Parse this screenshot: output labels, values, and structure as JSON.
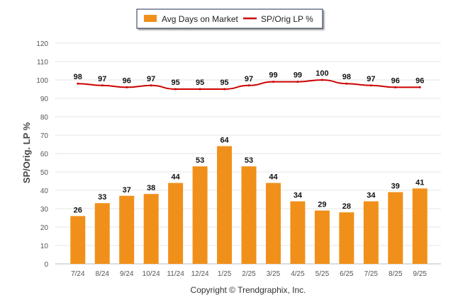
{
  "chart_data": {
    "type": "bar",
    "title": "",
    "xlabel": "",
    "ylabel": "SP/Orig. LP %",
    "ylim": [
      0,
      120
    ],
    "yticks": [
      "0",
      "10",
      "20",
      "30",
      "40",
      "50",
      "60",
      "70",
      "80",
      "90",
      "100",
      "110",
      "120"
    ],
    "grid": true,
    "legend_position": "top-center",
    "categories": [
      "7/24",
      "8/24",
      "9/24",
      "10/24",
      "11/24",
      "12/24",
      "1/25",
      "2/25",
      "3/25",
      "4/25",
      "5/25",
      "6/25",
      "7/25",
      "8/25",
      "9/25"
    ],
    "series": [
      {
        "name": "Avg Days on Market",
        "type": "bar",
        "color": "#F0901A",
        "values": [
          26,
          33,
          37,
          38,
          44,
          53,
          64,
          53,
          44,
          34,
          29,
          28,
          34,
          39,
          41
        ]
      },
      {
        "name": "SP/Orig LP %",
        "type": "line",
        "color": "#CC0000",
        "values": [
          98,
          97,
          96,
          97,
          95,
          95,
          95,
          97,
          99,
          99,
          100,
          98,
          97,
          96,
          96
        ]
      }
    ]
  },
  "footer": {
    "copyright": "Copyright © Trendgraphix, Inc."
  }
}
